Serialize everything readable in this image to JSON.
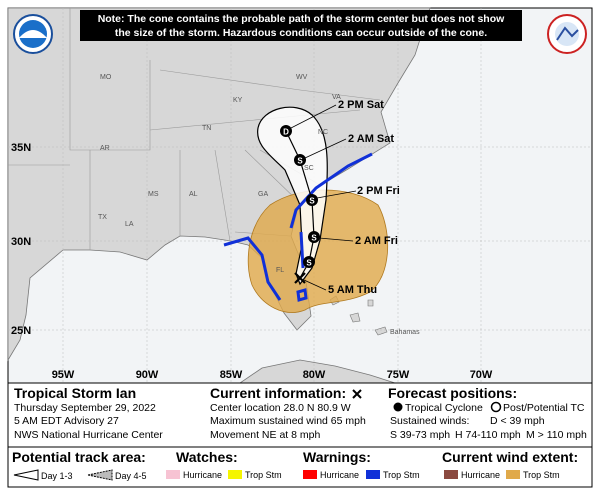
{
  "note": [
    "Note: The cone contains the probable path of the storm center but does not show",
    "the size of the storm. Hazardous conditions can occur outside of the cone."
  ],
  "map": {
    "state_labels": [
      "MO",
      "KY",
      "WV",
      "VA",
      "TN",
      "NC",
      "AR",
      "SC",
      "MS",
      "AL",
      "GA",
      "TX",
      "LA",
      "FL"
    ],
    "lat_labels": [
      "35N",
      "30N",
      "25N"
    ],
    "lon_labels": [
      "95W",
      "90W",
      "85W",
      "80W",
      "75W",
      "70W"
    ],
    "track_symbols": [
      "D",
      "S",
      "S",
      "S",
      "S"
    ],
    "track_labels": [
      "2 PM Sat",
      "2 AM Sat",
      "2 PM Fri",
      "2 AM Fri",
      "5 AM Thu"
    ],
    "region_labels": [
      "Bahamas"
    ]
  },
  "storm": {
    "title": "Tropical Storm Ian",
    "lines": [
      "Thursday September 29, 2022",
      "5 AM EDT Advisory 27",
      "NWS National Hurricane Center"
    ]
  },
  "current": {
    "heading": "Current information:",
    "lines": [
      "Center location 28.0 N 80.9 W",
      "Maximum sustained wind 65 mph",
      "Movement NE at 8 mph"
    ]
  },
  "forecast": {
    "heading": "Forecast positions:",
    "tropical": "Tropical Cyclone",
    "post": "Post/Potential TC",
    "sustained": "Sustained winds:",
    "d": "D < 39 mph",
    "s": "S 39-73 mph",
    "h": "H 74-110 mph",
    "m": "M > 110 mph"
  },
  "legend": {
    "track": "Potential track area:",
    "day13": "Day 1-3",
    "day45": "Day 4-5",
    "watches": "Watches:",
    "warnings": "Warnings:",
    "extent": "Current wind extent:",
    "hurricane": "Hurricane",
    "trop": "Trop Stm"
  }
}
